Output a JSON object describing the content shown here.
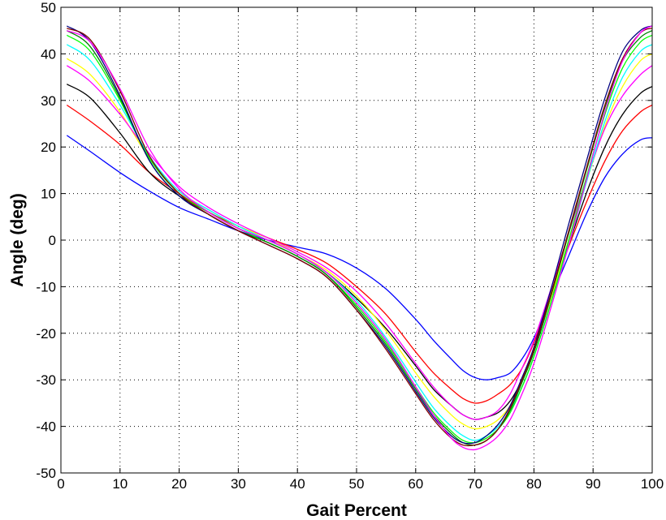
{
  "chart_data": {
    "type": "line",
    "title": "",
    "xlabel": "Gait Percent",
    "ylabel": "Angle (deg)",
    "xlim": [
      0,
      100
    ],
    "ylim": [
      -50,
      50
    ],
    "xticks": [
      0,
      10,
      20,
      30,
      40,
      50,
      60,
      70,
      80,
      90,
      100
    ],
    "yticks": [
      -50,
      -40,
      -30,
      -20,
      -10,
      0,
      10,
      20,
      30,
      40,
      50
    ],
    "grid": true,
    "legend": "none",
    "x": [
      1,
      5,
      10,
      15,
      20,
      25,
      30,
      35,
      40,
      45,
      50,
      55,
      60,
      63,
      66,
      68,
      70,
      72,
      74,
      76,
      78,
      80,
      83,
      86,
      89,
      92,
      95,
      98,
      100
    ],
    "series": [
      {
        "color": "#0000ff",
        "values": [
          22.5,
          19.0,
          14.5,
          10.5,
          7.0,
          4.5,
          2.0,
          0.0,
          -1.5,
          -3.0,
          -6.0,
          -10.5,
          -17.0,
          -21.5,
          -25.5,
          -28.0,
          -29.5,
          -30.0,
          -29.5,
          -28.5,
          -25.5,
          -21.0,
          -12.0,
          -3.0,
          6.0,
          13.5,
          18.5,
          21.5,
          22.0
        ]
      },
      {
        "color": "#ff0000",
        "values": [
          29.0,
          25.5,
          20.5,
          14.5,
          10.0,
          6.0,
          3.0,
          0.5,
          -2.0,
          -5.0,
          -10.0,
          -16.0,
          -24.0,
          -28.5,
          -32.0,
          -34.0,
          -35.0,
          -34.5,
          -33.0,
          -31.0,
          -27.5,
          -22.0,
          -11.5,
          -1.0,
          8.5,
          17.0,
          23.5,
          27.5,
          29.0
        ]
      },
      {
        "color": "#000000",
        "values": [
          33.5,
          30.5,
          23.0,
          14.5,
          9.5,
          6.0,
          2.5,
          0.0,
          -3.0,
          -7.0,
          -12.5,
          -19.0,
          -27.0,
          -32.0,
          -35.5,
          -37.5,
          -38.5,
          -38.0,
          -37.0,
          -34.5,
          -30.0,
          -24.0,
          -12.0,
          -0.5,
          10.5,
          20.0,
          27.0,
          31.5,
          33.0
        ]
      },
      {
        "color": "#ffff00",
        "values": [
          39.0,
          35.5,
          27.5,
          17.5,
          10.5,
          6.5,
          3.0,
          0.5,
          -3.0,
          -6.5,
          -12.0,
          -19.5,
          -28.5,
          -33.5,
          -37.5,
          -39.5,
          -40.5,
          -40.0,
          -38.5,
          -35.5,
          -30.0,
          -23.5,
          -12.0,
          0.5,
          13.0,
          24.5,
          33.0,
          38.5,
          40.0
        ]
      },
      {
        "color": "#ff00ff",
        "values": [
          37.5,
          34.0,
          27.0,
          18.5,
          11.5,
          7.0,
          3.5,
          0.5,
          -2.5,
          -6.0,
          -11.0,
          -18.0,
          -26.5,
          -31.5,
          -35.5,
          -37.5,
          -38.5,
          -38.0,
          -36.5,
          -33.0,
          -27.5,
          -21.5,
          -10.0,
          2.0,
          13.5,
          24.0,
          31.0,
          35.5,
          37.5
        ]
      },
      {
        "color": "#00ffff",
        "values": [
          42.0,
          38.5,
          29.0,
          18.0,
          10.5,
          6.5,
          3.0,
          0.0,
          -3.0,
          -7.0,
          -13.0,
          -21.0,
          -30.5,
          -36.0,
          -40.0,
          -42.0,
          -43.0,
          -42.0,
          -40.0,
          -36.5,
          -31.5,
          -25.0,
          -13.0,
          -0.5,
          13.0,
          25.5,
          35.0,
          40.5,
          42.0
        ]
      },
      {
        "color": "#00ff00",
        "values": [
          44.0,
          40.5,
          30.0,
          17.5,
          10.0,
          6.0,
          2.5,
          -0.5,
          -3.5,
          -7.5,
          -14.0,
          -22.0,
          -31.5,
          -37.0,
          -41.0,
          -43.0,
          -43.5,
          -42.5,
          -40.5,
          -37.0,
          -31.5,
          -25.0,
          -13.0,
          0.5,
          14.0,
          27.0,
          37.0,
          42.5,
          44.0
        ]
      },
      {
        "color": "#008000",
        "values": [
          45.0,
          41.5,
          30.5,
          17.0,
          9.5,
          5.5,
          2.0,
          -0.5,
          -3.5,
          -7.5,
          -14.5,
          -22.5,
          -32.0,
          -37.5,
          -41.5,
          -43.5,
          -44.0,
          -43.0,
          -40.5,
          -36.5,
          -30.5,
          -24.0,
          -11.5,
          2.0,
          15.5,
          28.5,
          38.5,
          43.5,
          45.0
        ]
      },
      {
        "color": "#000080",
        "values": [
          46.0,
          42.5,
          31.0,
          17.0,
          9.5,
          5.5,
          2.0,
          -1.0,
          -4.0,
          -8.0,
          -15.0,
          -23.0,
          -32.5,
          -38.0,
          -42.0,
          -43.5,
          -43.5,
          -42.0,
          -39.5,
          -35.5,
          -29.5,
          -23.0,
          -10.0,
          4.0,
          17.5,
          30.5,
          40.5,
          45.0,
          46.0
        ]
      },
      {
        "color": "#800000",
        "values": [
          45.5,
          43.0,
          32.0,
          18.0,
          10.0,
          5.5,
          2.0,
          -1.0,
          -4.0,
          -8.0,
          -15.0,
          -23.5,
          -33.0,
          -38.5,
          -42.5,
          -44.0,
          -44.0,
          -43.0,
          -40.5,
          -36.0,
          -30.0,
          -23.5,
          -11.0,
          2.5,
          16.0,
          29.0,
          39.0,
          44.5,
          45.5
        ]
      },
      {
        "color": "#ff00ff",
        "values": [
          45.0,
          42.5,
          32.5,
          19.5,
          11.0,
          6.0,
          2.5,
          0.0,
          -3.0,
          -7.0,
          -13.5,
          -21.5,
          -31.5,
          -37.5,
          -42.5,
          -44.5,
          -45.0,
          -44.0,
          -42.0,
          -38.5,
          -33.0,
          -26.5,
          -14.0,
          -0.5,
          13.5,
          27.5,
          38.5,
          44.5,
          46.0
        ]
      }
    ]
  }
}
